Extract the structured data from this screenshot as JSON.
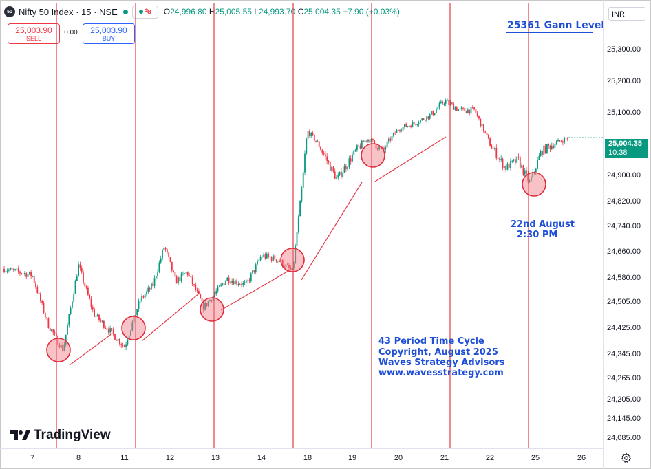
{
  "header": {
    "badge": "50",
    "symbol_title": "Nifty 50 Index · 15 · NSE",
    "compare_icon": "wave-icon",
    "ohlc": {
      "o_key": "O",
      "o_val": "24,996.80",
      "h_key": "H",
      "h_val": "25,005.55",
      "l_key": "L",
      "l_val": "24,993.70",
      "c_key": "C",
      "c_val": "25,004.35",
      "change": "+7.90 (+0.03%)"
    }
  },
  "trade": {
    "sell_price": "25,003.90",
    "sell_label": "SELL",
    "spread": "0.00",
    "buy_price": "25,003.90",
    "buy_label": "BUY"
  },
  "price_scale": {
    "currency": "INR",
    "last_price": "25,004.35",
    "countdown": "10:38",
    "ticks": [
      "25,300.00",
      "25,200.00",
      "25,100.00",
      "24,980.00",
      "24,900.00",
      "24,820.00",
      "24,740.00",
      "24,660.00",
      "24,580.00",
      "24,505.00",
      "24,425.00",
      "24,345.00",
      "24,265.00",
      "24,205.00",
      "24,145.00",
      "24,085.00"
    ]
  },
  "time_axis": {
    "ticks": [
      "7",
      "8",
      "11",
      "12",
      "13",
      "14",
      "18",
      "19",
      "20",
      "21",
      "22",
      "25",
      "26"
    ]
  },
  "annotations": {
    "gann_level": "25361 Gann Level",
    "date_note_line1": "22nd August",
    "date_note_line2": "2:30 PM",
    "cycle_lines": [
      "43 Period Time Cycle",
      "Copyright, August 2025",
      "Waves Strategy Advisors",
      "www.wavesstrategy.com"
    ]
  },
  "colors": {
    "up": "#089981",
    "down": "#f23645",
    "cycle_line": "#e63946",
    "annotation_text": "#1f4fd6",
    "circle_fill": "rgba(242,120,130,0.45)"
  },
  "watermark": "TradingView",
  "settings_icon": "gear-icon",
  "chart_data": {
    "type": "candlestick",
    "symbol": "Nifty 50 Index",
    "interval": "15",
    "ylim": [
      24060,
      25360
    ],
    "y_ticks": [
      25300,
      25200,
      25100,
      24980,
      24900,
      24820,
      24740,
      24660,
      24580,
      24505,
      24425,
      24345,
      24265,
      24205,
      24145,
      24085
    ],
    "x_ticks": [
      "7",
      "8",
      "11",
      "12",
      "13",
      "14",
      "18",
      "19",
      "20",
      "21",
      "22",
      "25",
      "26"
    ],
    "approx_close_path": [
      [
        "7",
        24610
      ],
      [
        "7",
        24590
      ],
      [
        "7",
        24440
      ],
      [
        "8",
        24360
      ],
      [
        "8",
        24620
      ],
      [
        "8",
        24470
      ],
      [
        "11",
        24420
      ],
      [
        "11",
        24370
      ],
      [
        "11",
        24510
      ],
      [
        "12",
        24560
      ],
      [
        "12",
        24680
      ],
      [
        "12",
        24570
      ],
      [
        "12",
        24600
      ],
      [
        "13",
        24490
      ],
      [
        "13",
        24580
      ],
      [
        "14",
        24560
      ],
      [
        "14",
        24650
      ],
      [
        "14",
        24640
      ],
      [
        "18",
        24600
      ],
      [
        "18",
        25030
      ],
      [
        "18",
        24960
      ],
      [
        "19",
        24890
      ],
      [
        "19",
        24950
      ],
      [
        "19",
        25000
      ],
      [
        "20",
        24960
      ],
      [
        "20",
        25040
      ],
      [
        "20",
        25060
      ],
      [
        "21",
        25090
      ],
      [
        "21",
        25140
      ],
      [
        "21",
        25110
      ],
      [
        "22",
        25110
      ],
      [
        "22",
        24980
      ],
      [
        "22",
        24920
      ],
      [
        "25",
        24940
      ],
      [
        "25",
        24880
      ],
      [
        "25",
        24960
      ],
      [
        "25",
        25004
      ]
    ],
    "last_close": 25004.35,
    "gann_level": 25361,
    "time_cycle_period": 43
  }
}
